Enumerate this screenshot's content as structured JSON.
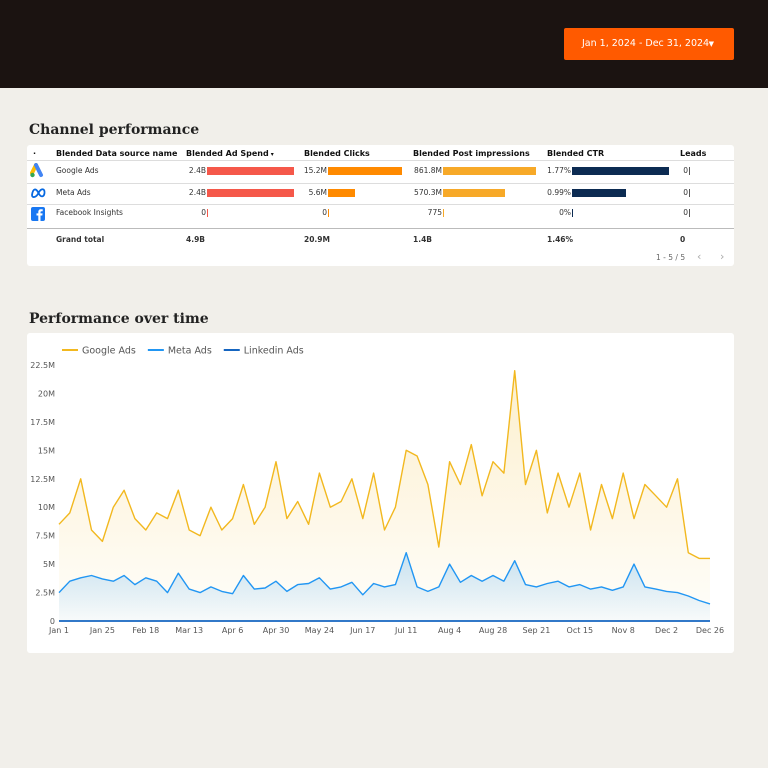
{
  "header": {
    "date_range": "Jan 1, 2024 - Dec 31, 2024"
  },
  "sections": {
    "table_title": "Channel performance",
    "chart_title": "Performance over time"
  },
  "table": {
    "columns": [
      "Blended Data source name",
      "Blended Ad Spend",
      "Blended Clicks",
      "Blended Post impressions",
      "Blended CTR",
      "Leads"
    ],
    "bar_colors": [
      "#f5584a",
      "#ff8a00",
      "#f7a928",
      "#0c2b52",
      "#555555"
    ],
    "rows": [
      {
        "name": "Google Ads",
        "cells": [
          {
            "value": 2400000000,
            "label": "2.4B"
          },
          {
            "value": 15200000,
            "label": "15.2M"
          },
          {
            "value": 861800000,
            "label": "861.8M"
          },
          {
            "value": 1.77,
            "label": "1.77%"
          },
          {
            "value": 0,
            "label": "0"
          }
        ]
      },
      {
        "name": "Meta Ads",
        "cells": [
          {
            "value": 2400000000,
            "label": "2.4B"
          },
          {
            "value": 5600000,
            "label": "5.6M"
          },
          {
            "value": 570300000,
            "label": "570.3M"
          },
          {
            "value": 0.99,
            "label": "0.99%"
          },
          {
            "value": 0,
            "label": "0"
          }
        ]
      },
      {
        "name": "Facebook Insights",
        "cells": [
          {
            "value": 0,
            "label": "0"
          },
          {
            "value": 0,
            "label": "0"
          },
          {
            "value": 775,
            "label": "775"
          },
          {
            "value": 0,
            "label": "0%"
          },
          {
            "value": 0,
            "label": "0"
          }
        ]
      }
    ],
    "total": {
      "name": "Grand total",
      "cells": [
        "4.9B",
        "20.9M",
        "1.4B",
        "1.46%",
        "0"
      ]
    },
    "pagination": "1 - 5 / 5"
  },
  "chart_data": {
    "type": "line",
    "categories": [
      "Jan 1",
      null,
      null,
      null,
      "Jan 25",
      null,
      null,
      null,
      "Feb 18",
      null,
      null,
      null,
      "Mar 13",
      null,
      null,
      null,
      "Apr 6",
      null,
      null,
      null,
      "Apr 30",
      null,
      null,
      null,
      "May 24",
      null,
      null,
      null,
      "Jun 17",
      null,
      null,
      null,
      "Jul 11",
      null,
      null,
      null,
      "Aug 4",
      null,
      null,
      null,
      "Aug 28",
      null,
      null,
      null,
      "Sep 21",
      null,
      null,
      null,
      "Oct 15",
      null,
      null,
      null,
      "Nov 8",
      null,
      null,
      null,
      "Dec 2",
      null,
      null,
      null,
      "Dec 26"
    ],
    "series": [
      {
        "name": "Google Ads",
        "color": "#f2b81f",
        "values": [
          8.5,
          9.5,
          12.5,
          8,
          7,
          10,
          11.5,
          9,
          8,
          9.5,
          9,
          11.5,
          8,
          7.5,
          10,
          8,
          9,
          12,
          8.5,
          10,
          14,
          9,
          10.5,
          8.5,
          13,
          10,
          10.5,
          12.5,
          9,
          13,
          8,
          10,
          15,
          14.5,
          12,
          6.5,
          14,
          12,
          15.5,
          11,
          14,
          13,
          22,
          12,
          15,
          9.5,
          13,
          10,
          13,
          8,
          12,
          9,
          13,
          9,
          12,
          11,
          10,
          12.5,
          6,
          5.5,
          5.5
        ]
      },
      {
        "name": "Meta Ads",
        "color": "#2196f3",
        "values": [
          2.5,
          3.5,
          3.8,
          4,
          3.7,
          3.5,
          4,
          3.2,
          3.8,
          3.5,
          2.5,
          4.2,
          2.8,
          2.5,
          3,
          2.6,
          2.4,
          4,
          2.8,
          2.9,
          3.5,
          2.6,
          3.2,
          3.3,
          3.8,
          2.8,
          3,
          3.4,
          2.3,
          3.3,
          3,
          3.2,
          6,
          3,
          2.6,
          3,
          5,
          3.4,
          4,
          3.5,
          4,
          3.5,
          5.3,
          3.2,
          3,
          3.3,
          3.5,
          3,
          3.2,
          2.8,
          3,
          2.7,
          3,
          5,
          3,
          2.8,
          2.6,
          2.5,
          2.2,
          1.8,
          1.5
        ]
      },
      {
        "name": "Linkedin Ads",
        "color": "#1565c0",
        "values": [
          0,
          0,
          0,
          0,
          0,
          0,
          0,
          0,
          0,
          0,
          0,
          0,
          0,
          0,
          0,
          0,
          0,
          0,
          0,
          0,
          0,
          0,
          0,
          0,
          0,
          0,
          0,
          0,
          0,
          0,
          0,
          0,
          0,
          0,
          0,
          0,
          0,
          0,
          0,
          0,
          0,
          0,
          0,
          0,
          0,
          0,
          0,
          0,
          0,
          0,
          0,
          0,
          0,
          0,
          0,
          0,
          0,
          0,
          0,
          0,
          0
        ]
      }
    ],
    "ylim": [
      0,
      22.5
    ],
    "yticks": [
      0,
      {
        "value": 2.5,
        "label": "2.5M"
      },
      {
        "value": 5,
        "label": "5M"
      },
      {
        "value": 7.5,
        "label": "7.5M"
      },
      {
        "value": 10,
        "label": "10M"
      },
      {
        "value": 12.5,
        "label": "12.5M"
      },
      {
        "value": 15,
        "label": "15M"
      },
      {
        "value": 17.5,
        "label": "17.5M"
      },
      {
        "value": 20,
        "label": "20M"
      },
      {
        "value": 22.5,
        "label": "22.5M"
      }
    ],
    "grid": false,
    "legend": "top-left"
  }
}
